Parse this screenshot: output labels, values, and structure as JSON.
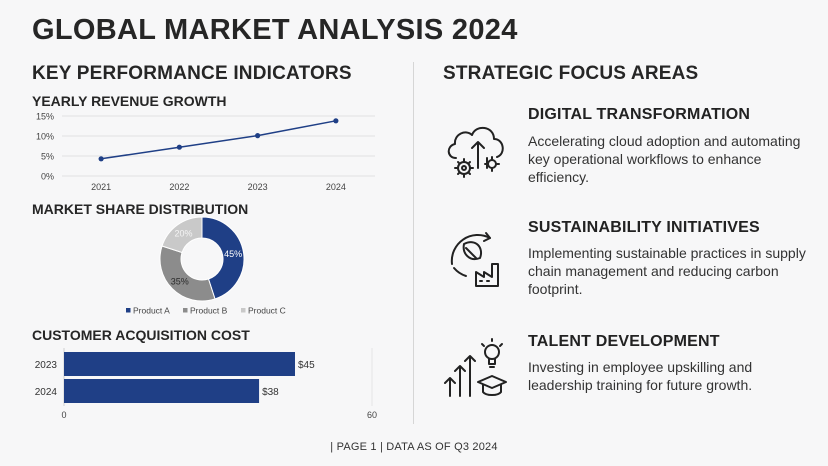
{
  "title": "GLOBAL MARKET ANALYSIS 2024",
  "left_heading": "KEY PERFORMANCE INDICATORS",
  "right_heading": "STRATEGIC FOCUS AREAS",
  "charts": {
    "revenue_title": "YEARLY REVENUE GROWTH",
    "share_title": "MARKET SHARE DISTRIBUTION",
    "cac_title": "CUSTOMER ACQUISITION COST"
  },
  "colors": {
    "navy": "#1f3f86",
    "gray": "#8c8c8c",
    "light": "#c9c9c9"
  },
  "chart_data": [
    {
      "type": "line",
      "title": "YEARLY REVENUE GROWTH",
      "x": [
        "2021",
        "2022",
        "2023",
        "2024"
      ],
      "values": [
        4.3,
        7.2,
        10.1,
        13.8
      ],
      "ylim": [
        0,
        15
      ],
      "yticks": [
        "0%",
        "5%",
        "10%",
        "15%"
      ],
      "grid": true
    },
    {
      "type": "pie",
      "title": "MARKET SHARE DISTRIBUTION",
      "labels": [
        "Product A",
        "Product B",
        "Product C"
      ],
      "values": [
        45,
        35,
        20
      ],
      "value_labels": [
        "45%",
        "35%",
        "20%"
      ],
      "legend": "bottom"
    },
    {
      "type": "bar",
      "title": "CUSTOMER ACQUISITION COST",
      "categories": [
        "2023",
        "2024"
      ],
      "values": [
        45,
        38
      ],
      "value_labels": [
        "$45",
        "$38"
      ],
      "xlim": [
        0,
        60
      ],
      "xticks": [
        "0",
        "60"
      ]
    }
  ],
  "focus_areas": [
    {
      "title": "DIGITAL TRANSFORMATION",
      "desc": "Accelerating cloud adoption and automating key operational workflows to enhance efficiency.",
      "icon": "cloud-gear-icon"
    },
    {
      "title": "SUSTAINABILITY INITIATIVES",
      "desc": "Implementing sustainable practices in supply chain management and reducing carbon footprint.",
      "icon": "leaf-factory-icon"
    },
    {
      "title": "TALENT DEVELOPMENT",
      "desc": "Investing in employee upskilling and leadership training for future growth.",
      "icon": "growth-graduation-icon"
    }
  ],
  "footer": "| PAGE 1 | DATA AS OF Q3 2024"
}
